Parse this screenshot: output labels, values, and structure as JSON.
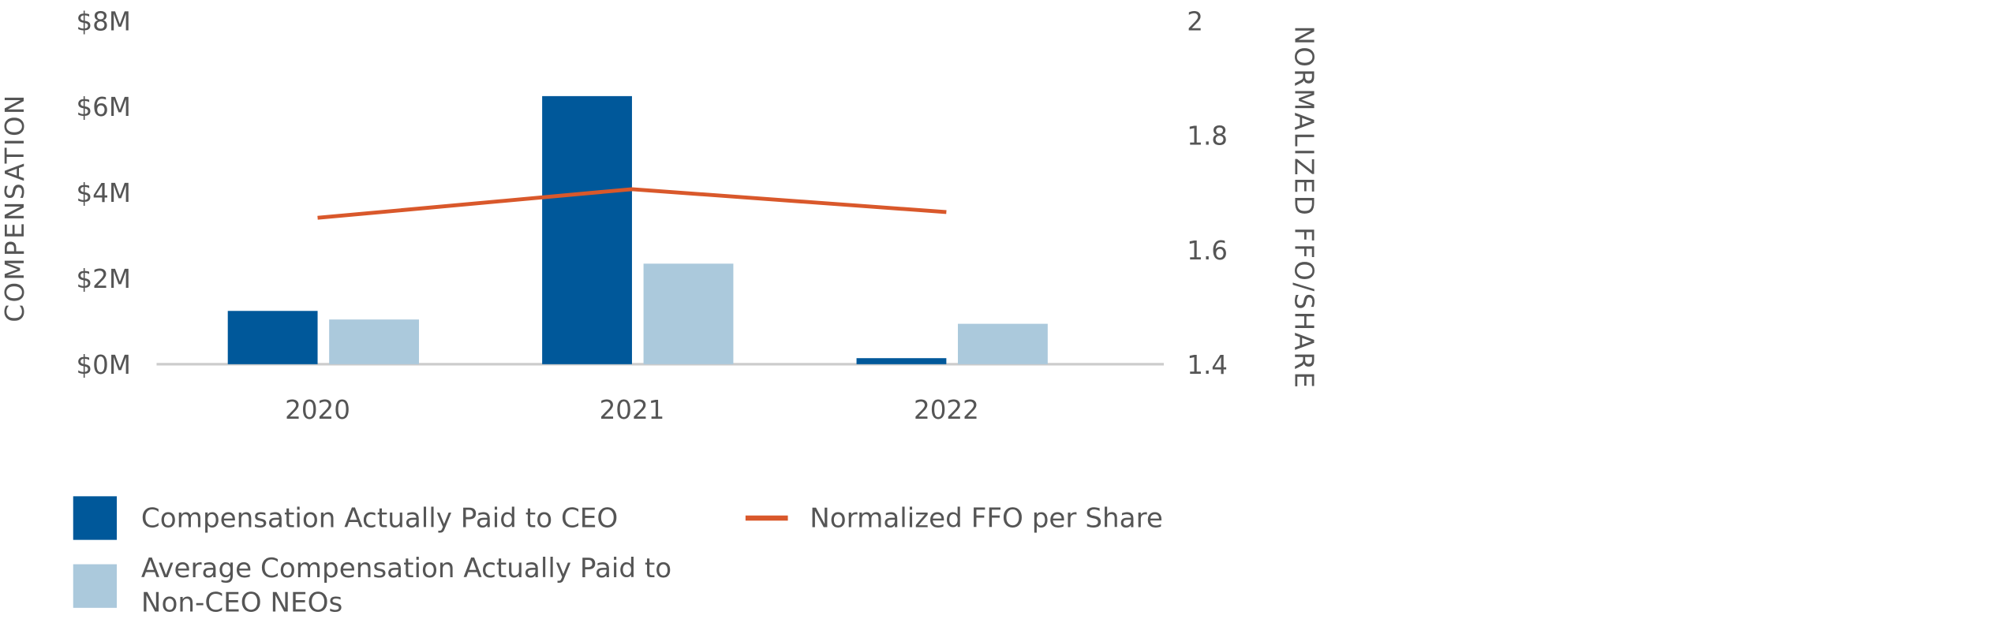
{
  "chart_data": {
    "type": "bar-line",
    "categories": [
      "2020",
      "2021",
      "2022"
    ],
    "series": [
      {
        "name": "Compensation Actually Paid to CEO",
        "type": "bar",
        "color": "#00589a",
        "values": [
          1.3,
          6.3,
          0.2
        ]
      },
      {
        "name": "Average Compensation Actually Paid to Non-CEO NEOs",
        "type": "bar",
        "color": "#abc9dc",
        "values": [
          1.1,
          2.4,
          1.0
        ]
      },
      {
        "name": "Normalized FFO per Share",
        "type": "line",
        "axis": "y2",
        "color": "#d9582b",
        "values": [
          1.66,
          1.71,
          1.67
        ]
      }
    ],
    "y_label": "COMPENSATION",
    "y2_label": "NORMALIZED FFO/SHARE",
    "ylim": [
      0,
      8
    ],
    "yticks": [
      {
        "value": 0,
        "label": "$0M"
      },
      {
        "value": 2,
        "label": "$2M"
      },
      {
        "value": 4,
        "label": "$4M"
      },
      {
        "value": 6,
        "label": "$6M"
      },
      {
        "value": 8,
        "label": "$8M"
      }
    ],
    "y2lim": [
      1.4,
      2
    ],
    "y2ticks": [
      1.4,
      1.6,
      1.8,
      2
    ],
    "grid": false
  }
}
